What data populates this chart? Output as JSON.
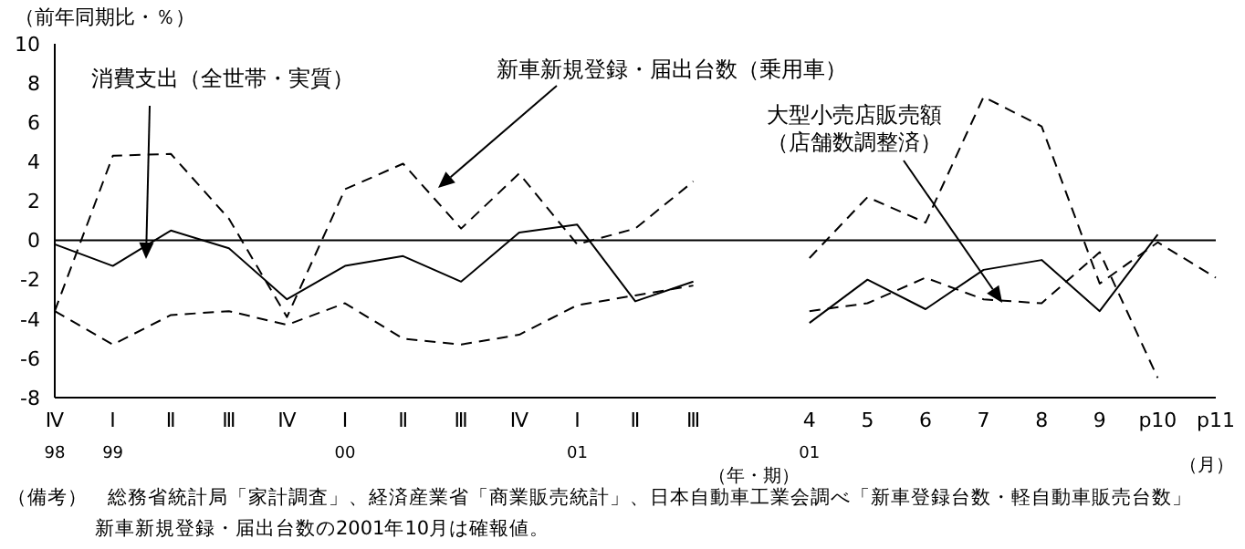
{
  "chart_data": {
    "type": "line",
    "ylabel": "（前年同期比・％）",
    "xlabel": "（年・期）",
    "categories": [
      "Ⅳ\n98",
      "Ⅰ\n99",
      "Ⅱ",
      "Ⅲ",
      "Ⅳ",
      "Ⅰ\n00",
      "Ⅱ",
      "Ⅲ",
      "Ⅳ",
      "Ⅰ\n01",
      "Ⅱ",
      "Ⅲ",
      null,
      "4\n01",
      "5",
      "6",
      "7",
      "8",
      "9",
      "p10",
      "p11"
    ],
    "series": [
      {
        "name": "消費支出（全世帯・実質）",
        "color": "#000000",
        "line_style": "solid",
        "values": [
          -0.2,
          -1.3,
          0.5,
          -0.4,
          -3.0,
          -1.3,
          -0.8,
          -2.1,
          0.4,
          0.8,
          -3.1,
          -2.1,
          null,
          -4.2,
          -2.0,
          -3.5,
          -1.5,
          -1.0,
          -3.6,
          0.3,
          null
        ]
      },
      {
        "name": "新車新規登録・届出台数（乗用車）",
        "color": "#000000",
        "line_style": "dashed",
        "values": [
          -3.6,
          4.3,
          4.4,
          1.1,
          -3.9,
          2.6,
          3.9,
          0.6,
          3.4,
          -0.2,
          0.6,
          3.0,
          null,
          -0.9,
          2.2,
          0.9,
          7.3,
          5.8,
          -2.2,
          -0.1,
          -1.9
        ]
      },
      {
        "name": "大型小売店販売額（店舗数調整済）",
        "color": "#000000",
        "line_style": "dashed",
        "values": [
          -3.6,
          -5.3,
          -3.8,
          -3.6,
          -4.3,
          -3.2,
          -5.0,
          -5.3,
          -4.8,
          -3.3,
          -2.8,
          -2.3,
          null,
          -3.6,
          -3.2,
          -1.9,
          -3.0,
          -3.2,
          -0.6,
          -7.0,
          null
        ]
      }
    ],
    "ylim": [
      -8,
      10
    ],
    "yticks": [
      -8,
      -6,
      -4,
      -2,
      0,
      2,
      4,
      6,
      8,
      10
    ],
    "ref_lines": [
      {
        "axis": "y",
        "value": 0,
        "color": "#000000"
      }
    ],
    "grid": false,
    "legend": false,
    "marker": "none",
    "annotations": [
      "（月）",
      "（備考）　総務省統計局「家計調査」、経済産業省「商業販売統計」、日本自動車工業会調べ「新車登録台数・軽自動車販売台数」",
      "新車新規登録・届出台数の2001年10月は確報値。"
    ]
  }
}
